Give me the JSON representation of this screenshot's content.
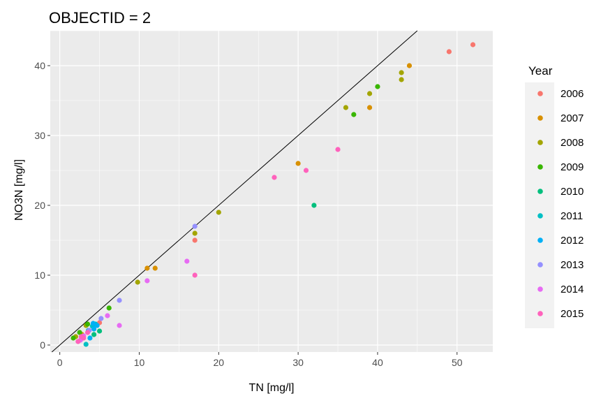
{
  "chart_data": {
    "type": "scatter",
    "title": "OBJECTID = 2",
    "xlabel": "TN [mg/l]",
    "ylabel": "NO3N [mg/l]",
    "xlim": [
      -1.2,
      54.5
    ],
    "ylim": [
      -1.0,
      45.0
    ],
    "x_ticks": [
      0,
      10,
      20,
      30,
      40,
      50
    ],
    "y_ticks": [
      0,
      10,
      20,
      30,
      40
    ],
    "grid": true,
    "reference_line": {
      "slope": 1,
      "intercept": 0
    },
    "legend": {
      "title": "Year",
      "placement": "right"
    },
    "series": [
      {
        "name": "2006",
        "color": "#F8766D",
        "points": [
          [
            52,
            43
          ],
          [
            49,
            42
          ],
          [
            17,
            15
          ],
          [
            5.0,
            3.2
          ]
        ]
      },
      {
        "name": "2007",
        "color": "#D89000",
        "points": [
          [
            44,
            40
          ],
          [
            39,
            34
          ],
          [
            30,
            26
          ],
          [
            12,
            11
          ],
          [
            11,
            11
          ],
          [
            2.8,
            1.5
          ]
        ]
      },
      {
        "name": "2008",
        "color": "#A3A500",
        "points": [
          [
            43,
            39
          ],
          [
            43,
            38
          ],
          [
            39,
            36
          ],
          [
            36,
            34
          ],
          [
            20,
            19
          ],
          [
            17,
            16
          ],
          [
            9.8,
            9
          ],
          [
            3.3,
            2.8
          ],
          [
            2.0,
            1.2
          ]
        ]
      },
      {
        "name": "2009",
        "color": "#39B600",
        "points": [
          [
            40,
            37
          ],
          [
            37,
            33
          ],
          [
            6.2,
            5.3
          ],
          [
            3.5,
            3.0
          ],
          [
            2.5,
            1.8
          ],
          [
            1.7,
            1.0
          ]
        ]
      },
      {
        "name": "2010",
        "color": "#00BF7D",
        "points": [
          [
            32,
            20
          ],
          [
            5.0,
            2.0
          ],
          [
            4.3,
            1.5
          ]
        ]
      },
      {
        "name": "2011",
        "color": "#00BFC4",
        "points": [
          [
            3.3,
            0.1
          ],
          [
            4.5,
            3.0
          ],
          [
            4.1,
            2.7
          ],
          [
            3.6,
            2.1
          ]
        ]
      },
      {
        "name": "2012",
        "color": "#00B0F6",
        "points": [
          [
            3.8,
            1.0
          ],
          [
            4.3,
            2.3
          ],
          [
            4.7,
            2.8
          ],
          [
            4.2,
            3.1
          ]
        ]
      },
      {
        "name": "2013",
        "color": "#9590FF",
        "points": [
          [
            17,
            17
          ],
          [
            7.5,
            6.4
          ],
          [
            5.2,
            3.8
          ],
          [
            3.7,
            2.1
          ]
        ]
      },
      {
        "name": "2014",
        "color": "#E76BF3",
        "points": [
          [
            16,
            12
          ],
          [
            11,
            9.2
          ],
          [
            7.5,
            2.8
          ],
          [
            6.0,
            4.2
          ],
          [
            3.0,
            1.3
          ],
          [
            2.6,
            0.7
          ]
        ]
      },
      {
        "name": "2015",
        "color": "#FF62BC",
        "points": [
          [
            35,
            28
          ],
          [
            31,
            25
          ],
          [
            27,
            24
          ],
          [
            17,
            10
          ],
          [
            2.3,
            0.5
          ],
          [
            3.0,
            1.0
          ],
          [
            2.7,
            1.2
          ],
          [
            3.5,
            1.8
          ]
        ]
      }
    ]
  }
}
